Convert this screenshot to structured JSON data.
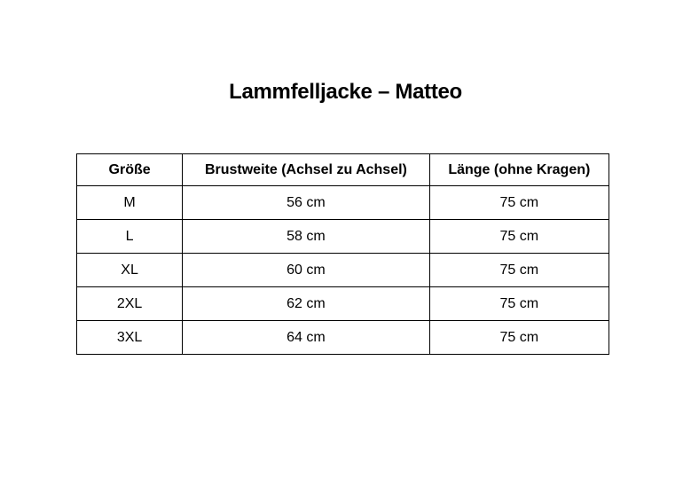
{
  "page": {
    "title": "Lammfelljacke – Matteo",
    "background_color": "#ffffff"
  },
  "colors": {
    "text": "#000000",
    "table_border": "#000000"
  },
  "size_table": {
    "columns": [
      "Größe",
      "Brustweite (Achsel zu Achsel)",
      "Länge (ohne Kragen)"
    ],
    "rows": [
      {
        "size": "M",
        "chest": "56 cm",
        "length": "75 cm"
      },
      {
        "size": "L",
        "chest": "58 cm",
        "length": "75 cm"
      },
      {
        "size": "XL",
        "chest": "60 cm",
        "length": "75 cm"
      },
      {
        "size": "2XL",
        "chest": "62 cm",
        "length": "75 cm"
      },
      {
        "size": "3XL",
        "chest": "64 cm",
        "length": "75 cm"
      }
    ]
  }
}
